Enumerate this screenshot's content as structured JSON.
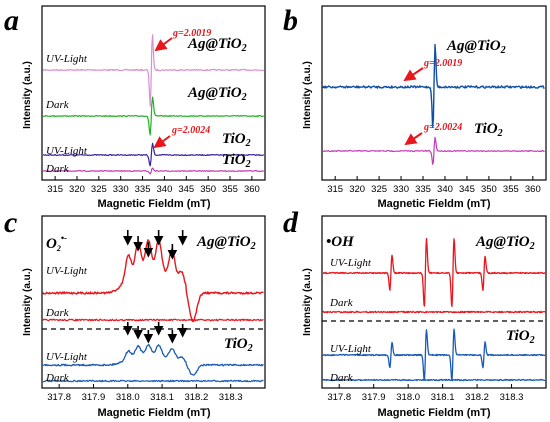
{
  "panels": [
    {
      "id": "a",
      "label": "a",
      "xlabel": "Magnetic Fieldm (mT)",
      "ylabel": "Intensity (a.u.)",
      "xticks": [
        315,
        320,
        325,
        330,
        335,
        340,
        345,
        350,
        355,
        360
      ],
      "traces": [
        {
          "name": "Ag@TiO2",
          "left_label": "UV-Light",
          "right_label": "Ag@TiO",
          "right_sub": "2",
          "g": "g=2.0019",
          "color": "#d98fd3"
        },
        {
          "name": "Ag@TiO2",
          "left_label": "Dark",
          "right_label": "Ag@TiO",
          "right_sub": "2",
          "color": "#1fb11f"
        },
        {
          "name": "TiO2",
          "left_label": "UV-Light",
          "right_label": "TiO",
          "right_sub": "2",
          "g": "g=2.0024",
          "color": "#3a1f9a"
        },
        {
          "name": "TiO2",
          "left_label": "Dark",
          "right_label": "TiO",
          "right_sub": "2",
          "color": "#c23bb9"
        }
      ]
    },
    {
      "id": "b",
      "label": "b",
      "xlabel": "Magnetic Fieldm (mT)",
      "ylabel": "Intensity (a.u.)",
      "xticks": [
        315,
        320,
        325,
        330,
        335,
        340,
        345,
        350,
        355,
        360
      ],
      "traces": [
        {
          "name": "Ag@TiO2",
          "right_label": "Ag@TiO",
          "right_sub": "2",
          "g": "g=2.0019",
          "color": "#0f4fa6"
        },
        {
          "name": "TiO2",
          "right_label": "TiO",
          "right_sub": "2",
          "g": "g=2.0024",
          "color": "#c23bb9"
        }
      ]
    },
    {
      "id": "c",
      "label": "c",
      "xlabel": "Magnetic Fieldm (mT)",
      "ylabel": "Intensity (a.u.)",
      "xticks": [
        "317.8",
        "317.9",
        "318.0",
        "318.1",
        "318.2",
        "318.3"
      ],
      "species": "O",
      "species_sub": "2",
      "species_sup": "•-",
      "traces": [
        {
          "name": "Ag@TiO2",
          "left_label": "UV-Light",
          "right_label": "Ag@TiO",
          "right_sub": "2",
          "color": "#e8161d"
        },
        {
          "name": "Ag@TiO2",
          "left_label": "Dark",
          "color": "#e8161d"
        },
        {
          "name": "TiO2",
          "left_label": "UV-Light",
          "right_label": "TiO",
          "right_sub": "2",
          "color": "#1a5bb5"
        },
        {
          "name": "TiO2",
          "left_label": "Dark",
          "color": "#1a5bb5"
        }
      ]
    },
    {
      "id": "d",
      "label": "d",
      "xlabel": "Magnetic Fieldm (mT)",
      "ylabel": "Intensity (a.u.)",
      "xticks": [
        "317.8",
        "317.9",
        "318.0",
        "318.1",
        "318.2",
        "318.3"
      ],
      "species": "•OH",
      "traces": [
        {
          "name": "Ag@TiO2",
          "left_label": "UV-Light",
          "right_label": "Ag@TiO",
          "right_sub": "2",
          "color": "#e8161d"
        },
        {
          "name": "Ag@TiO2",
          "left_label": "Dark",
          "color": "#e8161d"
        },
        {
          "name": "TiO2",
          "left_label": "UV-Light",
          "right_label": "TiO",
          "right_sub": "2",
          "color": "#1a5bb5"
        },
        {
          "name": "TiO2",
          "left_label": "Dark",
          "color": "#1a5bb5"
        }
      ]
    }
  ],
  "chart_data": [
    {
      "type": "line",
      "panel": "a",
      "xlim": [
        312,
        363
      ],
      "x_center": 337.0,
      "series": [
        {
          "name": "Ag@TiO2 UV-Light"
        },
        {
          "name": "Ag@TiO2 Dark"
        },
        {
          "name": "TiO2 UV-Light"
        },
        {
          "name": "TiO2 Dark"
        }
      ]
    },
    {
      "type": "line",
      "panel": "b",
      "xlim": [
        312,
        363
      ],
      "x_center": 337.5,
      "series": [
        {
          "name": "Ag@TiO2"
        },
        {
          "name": "TiO2"
        }
      ]
    },
    {
      "type": "line",
      "panel": "c",
      "xlim": [
        317.75,
        318.4
      ],
      "peak_x": [
        318.0,
        318.03,
        318.06,
        318.09,
        318.13,
        318.16
      ],
      "series": [
        {
          "name": "Ag@TiO2 UV-Light"
        },
        {
          "name": "Ag@TiO2 Dark"
        },
        {
          "name": "TiO2 UV-Light"
        },
        {
          "name": "TiO2 Dark"
        }
      ]
    },
    {
      "type": "line",
      "panel": "d",
      "xlim": [
        317.75,
        318.4
      ],
      "peak_x": [
        317.95,
        318.05,
        318.13,
        318.22
      ],
      "series": [
        {
          "name": "Ag@TiO2 UV-Light"
        },
        {
          "name": "Ag@TiO2 Dark"
        },
        {
          "name": "TiO2 UV-Light"
        },
        {
          "name": "TiO2 Dark"
        }
      ]
    }
  ]
}
